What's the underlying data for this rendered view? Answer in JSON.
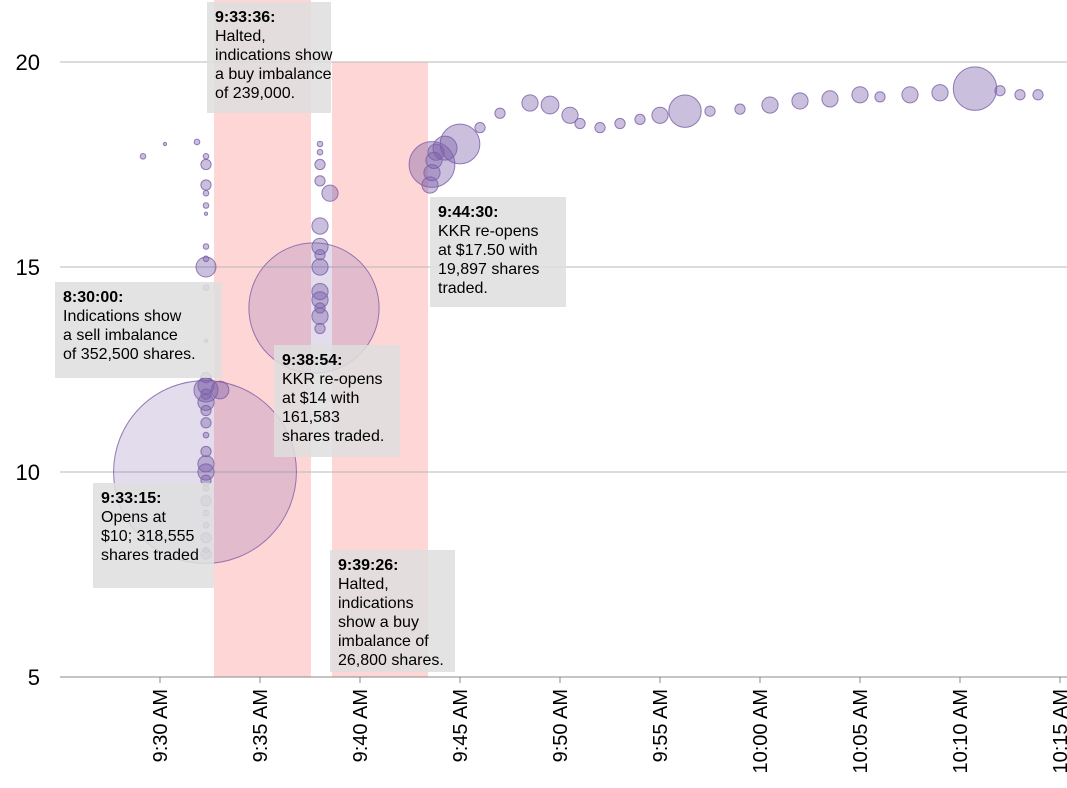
{
  "chart_data": {
    "type": "bubble",
    "xlim": [
      565,
      617
    ],
    "ylim": [
      5,
      20
    ],
    "yticks": [
      5,
      10,
      15,
      20
    ],
    "xticks": [
      {
        "value": 570,
        "label": "9:30 AM"
      },
      {
        "value": 575,
        "label": "9:35 AM"
      },
      {
        "value": 580,
        "label": "9:40 AM"
      },
      {
        "value": 585,
        "label": "9:45 AM"
      },
      {
        "value": 590,
        "label": "9:50 AM"
      },
      {
        "value": 595,
        "label": "9:55 AM"
      },
      {
        "value": 600,
        "label": "10:00 AM"
      },
      {
        "value": 605,
        "label": "10:05 AM"
      },
      {
        "value": 610,
        "label": "10:10 AM"
      },
      {
        "value": 615,
        "label": "10:15 AM"
      }
    ],
    "grid": true,
    "color": "#7b5ea7",
    "band_color": "#ffd6d6",
    "shaded_ranges": [
      [
        572.7,
        577.55
      ],
      [
        578.6,
        583.4
      ]
    ],
    "x": [
      569.15,
      570.25,
      571.85,
      572.3,
      572.3,
      572.3,
      572.3,
      572.3,
      572.3,
      572.3,
      572.3,
      572.3,
      572.3,
      572.3,
      572.3,
      572.3,
      572.3,
      572.3,
      572.3,
      572.3,
      572.3,
      572.3,
      572.3,
      572.3,
      572.3,
      572.3,
      572.3,
      572.3,
      572.3,
      572.3,
      572.3,
      572.3,
      572.3,
      573.0,
      572.25,
      578.0,
      578.0,
      578.0,
      578.0,
      578.5,
      578.0,
      578.0,
      578.0,
      578.0,
      578.0,
      578.0,
      578.0,
      578.0,
      578.0,
      577.7,
      583.5,
      583.6,
      583.7,
      583.8,
      583.6,
      584.25,
      585.0,
      586.0,
      587.0,
      588.5,
      589.5,
      590.5,
      591.0,
      592.0,
      593.0,
      594.0,
      595.0,
      596.25,
      597.5,
      599.0,
      600.5,
      602.0,
      603.5,
      605.0,
      606.0,
      607.5,
      609.0,
      610.75,
      612.0,
      613.0,
      613.9
    ],
    "y": [
      17.7,
      18.0,
      18.05,
      17.7,
      17.5,
      17.0,
      16.8,
      16.5,
      16.3,
      15.5,
      15.2,
      15.0,
      14.5,
      13.2,
      12.3,
      12.1,
      12.0,
      11.9,
      11.7,
      11.5,
      11.2,
      10.9,
      10.5,
      10.2,
      10.0,
      9.8,
      9.6,
      9.3,
      9.0,
      8.7,
      8.4,
      8.1,
      8.0,
      12.0,
      10.0,
      18.0,
      17.8,
      17.5,
      17.1,
      16.8,
      16.0,
      15.5,
      15.3,
      15.0,
      14.4,
      14.2,
      14.0,
      13.8,
      13.5,
      14.0,
      17.0,
      17.3,
      17.6,
      17.8,
      17.5,
      17.9,
      18.0,
      18.4,
      18.75,
      19.0,
      18.95,
      18.7,
      18.5,
      18.4,
      18.5,
      18.6,
      18.7,
      18.8,
      18.8,
      18.85,
      18.95,
      19.05,
      19.1,
      19.2,
      19.15,
      19.2,
      19.25,
      19.35,
      19.3,
      19.2,
      19.2
    ],
    "size": [
      300,
      100,
      300,
      300,
      1000,
      1000,
      300,
      300,
      100,
      300,
      300,
      3800,
      300,
      100,
      1000,
      2500,
      5500,
      1000,
      2500,
      1000,
      1000,
      300,
      1000,
      2500,
      2500,
      1000,
      300,
      1000,
      300,
      300,
      1000,
      300,
      1000,
      3000,
      318555,
      300,
      300,
      1000,
      1000,
      2500,
      2500,
      2500,
      1000,
      2500,
      2500,
      2500,
      1000,
      2500,
      1000,
      161583,
      2500,
      2500,
      2500,
      2500,
      19897,
      5500,
      15000,
      1000,
      1000,
      2500,
      3000,
      2500,
      1000,
      1000,
      1000,
      1000,
      2500,
      10000,
      1000,
      1000,
      2500,
      2500,
      2500,
      2500,
      1000,
      2500,
      2500,
      18000,
      1000,
      1000,
      1000
    ],
    "annotations": [
      {
        "lines": [
          "9:33:36:",
          "Halted,",
          "indications show",
          "a buy imbalance",
          "of 239,000."
        ]
      },
      {
        "lines": [
          "8:30:00:",
          "Indications show",
          "a sell imbalance",
          "of 352,500 shares."
        ]
      },
      {
        "lines": [
          "9:44:30:",
          "KKR re-opens",
          "at $17.50 with",
          "19,897 shares",
          "traded."
        ]
      },
      {
        "lines": [
          "9:38:54:",
          "KKR re-opens",
          "at $14 with",
          "161,583",
          "shares traded."
        ]
      },
      {
        "lines": [
          "9:33:15:",
          "Opens at",
          "$10; 318,555",
          "shares traded"
        ]
      },
      {
        "lines": [
          "9:39:26:",
          "Halted,",
          "indications",
          "show a buy",
          "imbalance of",
          "26,800 shares."
        ]
      }
    ]
  }
}
